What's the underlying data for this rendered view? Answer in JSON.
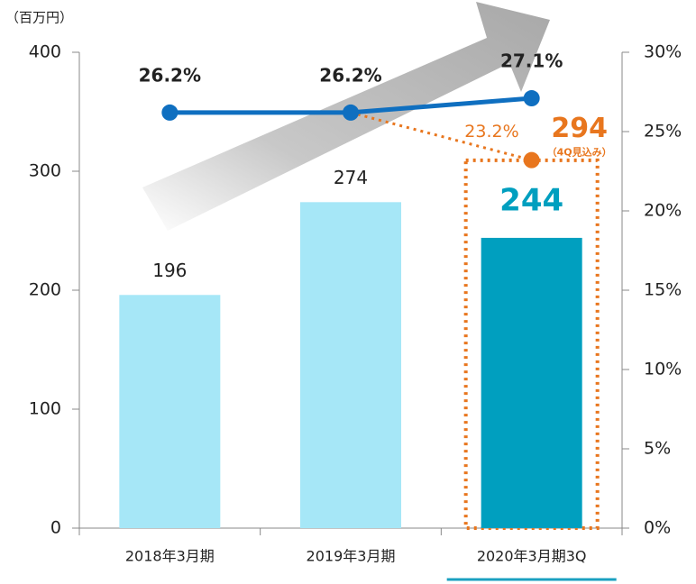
{
  "chart_data": {
    "type": "bar",
    "unit_label": "（百万円）",
    "categories": [
      "2018年3月期",
      "2019年3月期",
      "2020年3月期3Q"
    ],
    "series": [
      {
        "type": "bar",
        "values": [
          196,
          274,
          244
        ],
        "colors": [
          "#a6e7f7",
          "#a6e7f7",
          "#009fbf"
        ]
      },
      {
        "type": "line",
        "axis": "y2",
        "values": [
          26.2,
          26.2,
          27.1
        ],
        "value_labels": [
          "26.2%",
          "26.2%",
          "27.1%"
        ],
        "color": "#0f6fc0"
      }
    ],
    "forecast": {
      "value": 294,
      "note": "（4Q見込み）",
      "rate": 23.2,
      "rate_label": "23.2%",
      "color": "#e8761e"
    },
    "ylim": [
      0,
      400
    ],
    "yticks": [
      0,
      100,
      200,
      300,
      400
    ],
    "y2lim": [
      0,
      30
    ],
    "y2ticks": [
      {
        "value": 0,
        "label": "0%"
      },
      {
        "value": 5,
        "label": "5%"
      },
      {
        "value": 10,
        "label": "10%"
      },
      {
        "value": 15,
        "label": "15%"
      },
      {
        "value": 20,
        "label": "20%"
      },
      {
        "value": 25,
        "label": "25%"
      },
      {
        "value": 30,
        "label": "30%"
      }
    ]
  }
}
